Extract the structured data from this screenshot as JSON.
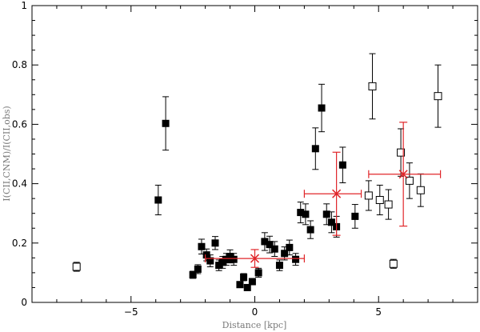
{
  "chart_data": {
    "type": "scatter",
    "title": "",
    "xlabel": "Distance [kpc]",
    "ylabel": "I(CII,CNM)/I(CII,obs)",
    "xlim": [
      -9,
      9
    ],
    "ylim": [
      0,
      1
    ],
    "x_ticks": [
      -5,
      0,
      5
    ],
    "y_ticks": [
      0,
      0.2,
      0.4,
      0.6,
      0.8,
      1
    ],
    "y_tick_labels": [
      "0",
      "0.2",
      "0.4",
      "0.6",
      "0.8",
      "1"
    ],
    "x_tick_labels": [
      "−5",
      "0",
      "5"
    ],
    "grid": false,
    "legend": "none",
    "series": [
      {
        "marker": "filled-square",
        "color": "#000000",
        "points": [
          {
            "x": -3.9,
            "y": 0.345,
            "err": 0.05
          },
          {
            "x": -3.6,
            "y": 0.603,
            "err": 0.09
          },
          {
            "x": -2.5,
            "y": 0.093,
            "err": 0.012
          },
          {
            "x": -2.3,
            "y": 0.112,
            "err": 0.015
          },
          {
            "x": -2.15,
            "y": 0.188,
            "err": 0.025
          },
          {
            "x": -1.95,
            "y": 0.16,
            "err": 0.02
          },
          {
            "x": -1.8,
            "y": 0.14,
            "err": 0.02
          },
          {
            "x": -1.6,
            "y": 0.2,
            "err": 0.022
          },
          {
            "x": -1.45,
            "y": 0.125,
            "err": 0.018
          },
          {
            "x": -1.3,
            "y": 0.135,
            "err": 0.02
          },
          {
            "x": -1.15,
            "y": 0.145,
            "err": 0.02
          },
          {
            "x": -1.0,
            "y": 0.155,
            "err": 0.022
          },
          {
            "x": -0.85,
            "y": 0.145,
            "err": 0.02
          },
          {
            "x": -0.6,
            "y": 0.06,
            "err": 0.01
          },
          {
            "x": -0.45,
            "y": 0.085,
            "err": 0.012
          },
          {
            "x": -0.3,
            "y": 0.05,
            "err": 0.008
          },
          {
            "x": -0.1,
            "y": 0.07,
            "err": 0.01
          },
          {
            "x": 0.15,
            "y": 0.1,
            "err": 0.015
          },
          {
            "x": 0.4,
            "y": 0.205,
            "err": 0.03
          },
          {
            "x": 0.6,
            "y": 0.195,
            "err": 0.028
          },
          {
            "x": 0.8,
            "y": 0.18,
            "err": 0.025
          },
          {
            "x": 1.0,
            "y": 0.125,
            "err": 0.018
          },
          {
            "x": 1.2,
            "y": 0.165,
            "err": 0.022
          },
          {
            "x": 1.4,
            "y": 0.185,
            "err": 0.025
          },
          {
            "x": 1.65,
            "y": 0.145,
            "err": 0.02
          },
          {
            "x": 1.85,
            "y": 0.303,
            "err": 0.035
          },
          {
            "x": 2.05,
            "y": 0.297,
            "err": 0.035
          },
          {
            "x": 2.25,
            "y": 0.245,
            "err": 0.03
          },
          {
            "x": 2.45,
            "y": 0.518,
            "err": 0.07
          },
          {
            "x": 2.7,
            "y": 0.655,
            "err": 0.08
          },
          {
            "x": 2.9,
            "y": 0.297,
            "err": 0.035
          },
          {
            "x": 3.1,
            "y": 0.27,
            "err": 0.035
          },
          {
            "x": 3.3,
            "y": 0.255,
            "err": 0.035
          },
          {
            "x": 3.55,
            "y": 0.463,
            "err": 0.06
          },
          {
            "x": 4.05,
            "y": 0.29,
            "err": 0.04
          }
        ]
      },
      {
        "marker": "open-square",
        "color": "#000000",
        "points": [
          {
            "x": -7.2,
            "y": 0.12,
            "err": 0.015
          },
          {
            "x": 4.6,
            "y": 0.36,
            "err": 0.05
          },
          {
            "x": 4.75,
            "y": 0.728,
            "err": 0.11
          },
          {
            "x": 5.05,
            "y": 0.345,
            "err": 0.05
          },
          {
            "x": 5.4,
            "y": 0.33,
            "err": 0.05
          },
          {
            "x": 5.6,
            "y": 0.13,
            "err": 0.015
          },
          {
            "x": 5.9,
            "y": 0.505,
            "err": 0.08
          },
          {
            "x": 6.25,
            "y": 0.41,
            "err": 0.06
          },
          {
            "x": 6.7,
            "y": 0.378,
            "err": 0.055
          },
          {
            "x": 7.4,
            "y": 0.695,
            "err": 0.105
          }
        ]
      },
      {
        "marker": "cross",
        "color": "#e0262a",
        "points": [
          {
            "x": 0.0,
            "y": 0.148,
            "xerr": [
              2.0,
              2.0
            ],
            "yerr": [
              0.03,
              0.03
            ]
          },
          {
            "x": 3.3,
            "y": 0.366,
            "xerr": [
              1.3,
              1.0
            ],
            "yerr": [
              0.14,
              0.14
            ]
          },
          {
            "x": 6.0,
            "y": 0.432,
            "xerr": [
              1.4,
              1.5
            ],
            "yerr": [
              0.175,
              0.175
            ]
          }
        ]
      }
    ]
  }
}
